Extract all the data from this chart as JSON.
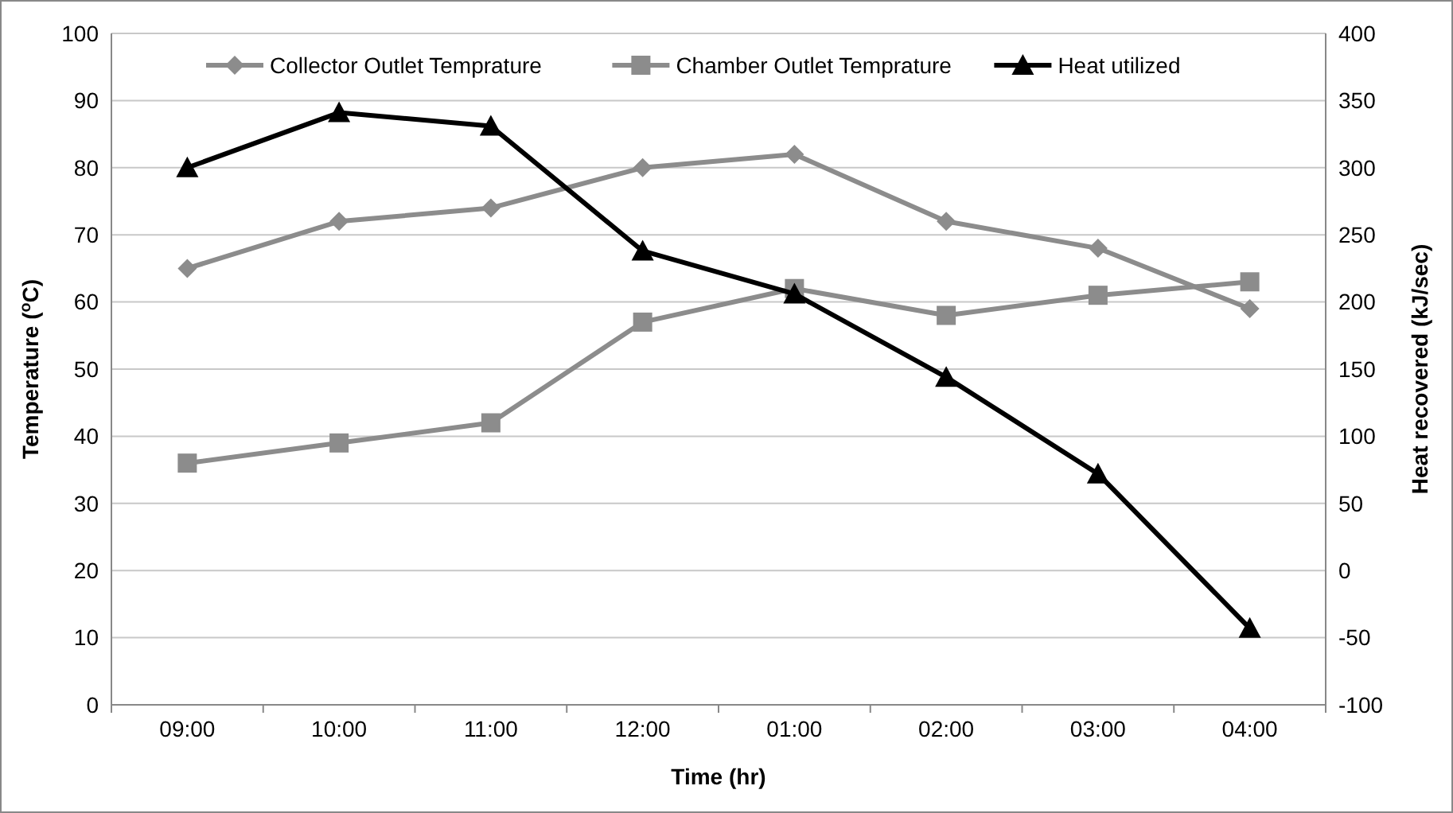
{
  "chart_data": {
    "type": "line",
    "xlabel": "Time (hr)",
    "ylabel": "Temperature ($^{o}$C)",
    "y2label": "Heat recovered (kJ/sec)",
    "categories": [
      "09:00",
      "10:00",
      "11:00",
      "12:00",
      "01:00",
      "02:00",
      "03:00",
      "04:00"
    ],
    "series": [
      {
        "name": "Collector Outlet Temprature",
        "color": "#8c8c8c",
        "marker": "diamond",
        "values": [
          65,
          72,
          74,
          80,
          82,
          72,
          68,
          59
        ]
      },
      {
        "name": "Chamber Outlet Temprature",
        "color": "#8c8c8c",
        "marker": "square",
        "values": [
          36,
          39,
          42,
          57,
          62,
          58,
          61,
          63
        ]
      },
      {
        "name": "Heat utilized",
        "color": "#000000",
        "marker": "triangle",
        "axis": "y2",
        "values": [
          300,
          341,
          331,
          238,
          206,
          144,
          72,
          -43
        ]
      }
    ],
    "ylim": [
      0,
      100
    ],
    "yticks": [
      0,
      10,
      20,
      30,
      40,
      50,
      60,
      70,
      80,
      90,
      100
    ],
    "y2lim": [
      -100,
      400
    ],
    "y2ticks": [
      -100,
      -50,
      0,
      50,
      100,
      150,
      200,
      250,
      300,
      350,
      400
    ],
    "grid": "y",
    "legend": "top"
  }
}
